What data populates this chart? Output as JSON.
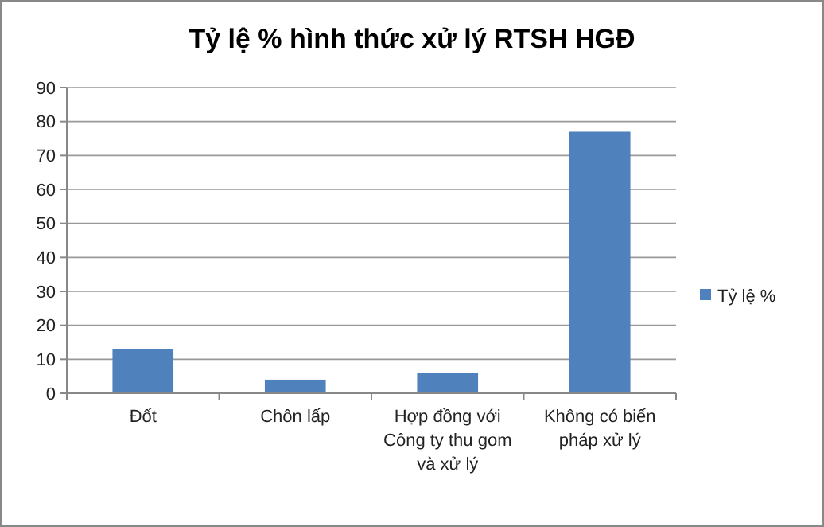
{
  "chart_data": {
    "type": "bar",
    "title": "Tỷ lệ % hình thức xử lý RTSH HGĐ",
    "categories": [
      "Đốt",
      "Chôn lấp",
      "Hợp đồng với Công ty thu gom và xử lý",
      "Không có biến pháp xử lý"
    ],
    "series": [
      {
        "name": "Tỷ lệ %",
        "color": "#4f81bd",
        "values": [
          13,
          4,
          6,
          77
        ]
      }
    ],
    "ylim": [
      0,
      90
    ],
    "yticks": [
      0,
      10,
      20,
      30,
      40,
      50,
      60,
      70,
      80,
      90
    ],
    "grid": "y",
    "legend": "right"
  }
}
